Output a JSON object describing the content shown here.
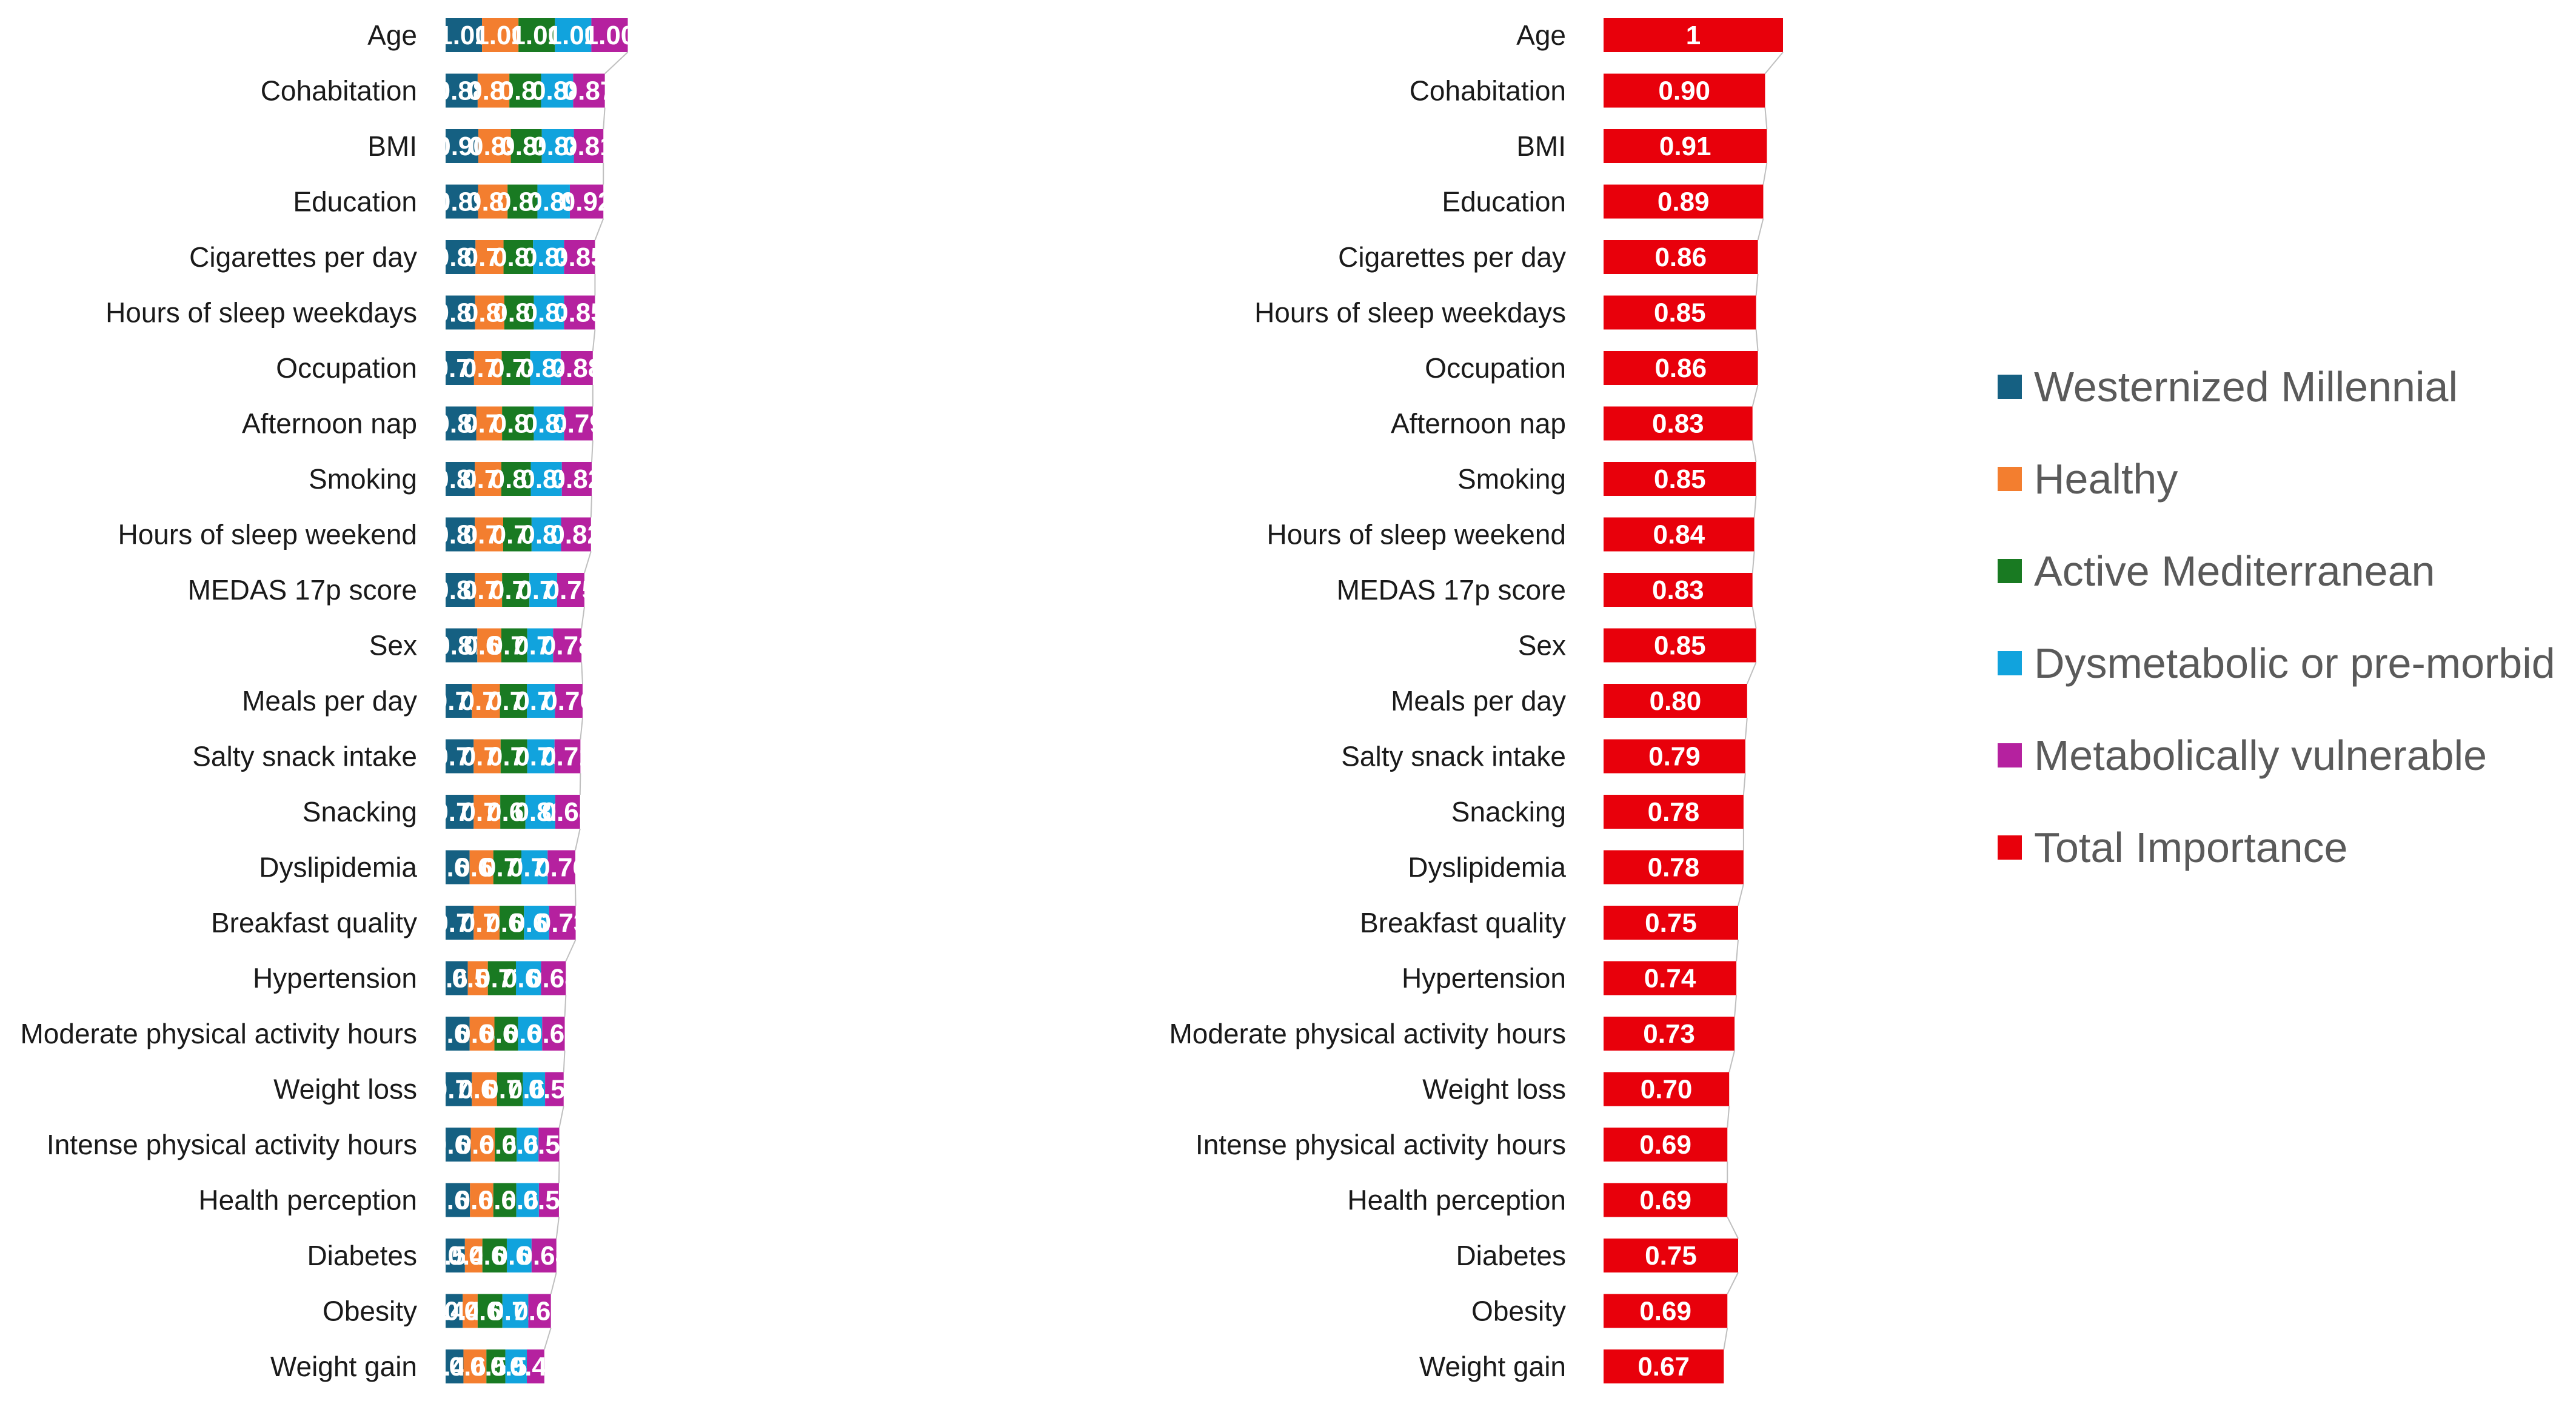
{
  "chart_data": [
    {
      "type": "bar",
      "stacked": true,
      "orientation": "horizontal",
      "categories": [
        "Age",
        "Cohabitation",
        "BMI",
        "Education",
        "Cigarettes per day",
        "Hours of sleep weekdays",
        "Occupation",
        "Afternoon nap",
        "Smoking",
        "Hours of sleep weekend",
        "MEDAS 17p score",
        "Sex",
        "Meals per day",
        "Salty snack intake",
        "Snacking",
        "Dyslipidemia",
        "Breakfast quality",
        "Hypertension",
        "Moderate physical activity hours",
        "Weight loss",
        "Intense physical activity hours",
        "Health perception",
        "Diabetes",
        "Obesity",
        "Weight gain"
      ],
      "series": [
        {
          "name": "Westernized Millennial",
          "color": "#156082",
          "values": [
            1.0,
            0.88,
            0.9,
            0.89,
            0.82,
            0.81,
            0.78,
            0.84,
            0.8,
            0.8,
            0.8,
            0.87,
            0.72,
            0.77,
            0.77,
            0.66,
            0.77,
            0.61,
            0.66,
            0.72,
            0.69,
            0.67,
            0.53,
            0.47,
            0.49
          ],
          "labels": [
            "1.00",
            "0.88",
            "0.90",
            "0.89",
            "0.82",
            "0.81",
            "0.78",
            "0.84",
            "0.80",
            "0.80",
            "0.80",
            "0.87",
            "0.72",
            "0.77",
            "0.77",
            "0.66",
            "0.77",
            "0.61",
            "0.66",
            "0.72",
            "0.69",
            "0.67",
            "0.53",
            "0.47",
            "0.49"
          ]
        },
        {
          "name": "Healthy",
          "color": "#F37E2F",
          "values": [
            1.0,
            0.87,
            0.89,
            0.81,
            0.77,
            0.8,
            0.76,
            0.71,
            0.73,
            0.78,
            0.75,
            0.66,
            0.77,
            0.74,
            0.73,
            0.65,
            0.71,
            0.55,
            0.68,
            0.69,
            0.66,
            0.64,
            0.48,
            0.41,
            0.63
          ],
          "labels": [
            "1.00",
            "0.87",
            "0.89",
            "0.81",
            "0.77",
            "0.80",
            "0.76",
            "0.71",
            "0.73",
            "0.78",
            "0.75",
            "0.66",
            "0.77",
            "0.74",
            "0.73",
            "0.65",
            "0.71",
            "0.55",
            "0.68",
            "0.69",
            "0.66",
            "0.64",
            "0.48",
            "0.41",
            "0.63"
          ]
        },
        {
          "name": "Active Mediterranean",
          "color": "#197A22",
          "values": [
            1.0,
            0.87,
            0.85,
            0.82,
            0.81,
            0.81,
            0.78,
            0.87,
            0.81,
            0.78,
            0.75,
            0.71,
            0.74,
            0.73,
            0.69,
            0.77,
            0.67,
            0.77,
            0.65,
            0.71,
            0.6,
            0.63,
            0.67,
            0.68,
            0.52
          ],
          "labels": [
            "1.00",
            "0.87",
            "0.85",
            "0.82",
            "0.81",
            "0.81",
            "0.78",
            "0.87",
            "0.81",
            "0.78",
            "0.75",
            "0.71",
            "0.74",
            "0.73",
            "0.69",
            "0.77",
            "0.67",
            "0.77",
            "0.65",
            "0.71",
            "0.60",
            "0.63",
            "0.67",
            "0.68",
            "0.52"
          ]
        },
        {
          "name": "Dysmetabolic or pre-morbid",
          "color": "#11A3DD",
          "values": [
            1.0,
            0.88,
            0.88,
            0.89,
            0.85,
            0.83,
            0.84,
            0.83,
            0.85,
            0.81,
            0.76,
            0.71,
            0.77,
            0.75,
            0.82,
            0.72,
            0.69,
            0.69,
            0.66,
            0.61,
            0.6,
            0.62,
            0.68,
            0.71,
            0.59
          ],
          "labels": [
            "1.00",
            "0.88",
            "0.88",
            "0.89",
            "0.85",
            "0.83",
            "0.84",
            "0.83",
            "0.85",
            "0.81",
            "0.76",
            "0.71",
            "0.77",
            "0.75",
            "0.82",
            "0.72",
            "0.69",
            "0.69",
            "0.66",
            "0.61",
            "0.60",
            "0.62",
            "0.68",
            "0.71",
            "0.59"
          ]
        },
        {
          "name": "Metabolically vulnerable",
          "color": "#B5219F",
          "values": [
            1.0,
            0.87,
            0.81,
            0.92,
            0.85,
            0.85,
            0.88,
            0.79,
            0.82,
            0.82,
            0.75,
            0.78,
            0.76,
            0.71,
            0.68,
            0.76,
            0.73,
            0.68,
            0.62,
            0.51,
            0.57,
            0.55,
            0.68,
            0.62,
            0.48
          ],
          "labels": [
            "1.00",
            "0.87",
            "0.81",
            "0.92",
            "0.85",
            "0.85",
            "0.88",
            "0.79",
            "0.82",
            "0.82",
            "0.75",
            "0.78",
            "0.76",
            "0.71",
            "0.68",
            "0.76",
            "0.73",
            "0.68",
            "0.62",
            "0.51",
            "0.57",
            "0.55",
            "0.68",
            "0.62",
            "0.48"
          ]
        }
      ]
    },
    {
      "type": "bar",
      "orientation": "horizontal",
      "categories": [
        "Age",
        "Cohabitation",
        "BMI",
        "Education",
        "Cigarettes per day",
        "Hours of sleep weekdays",
        "Occupation",
        "Afternoon nap",
        "Smoking",
        "Hours of sleep weekend",
        "MEDAS 17p score",
        "Sex",
        "Meals per day",
        "Salty snack intake",
        "Snacking",
        "Dyslipidemia",
        "Breakfast quality",
        "Hypertension",
        "Moderate physical activity hours",
        "Weight loss",
        "Intense physical activity hours",
        "Health perception",
        "Diabetes",
        "Obesity",
        "Weight gain"
      ],
      "series": [
        {
          "name": "Total Importance",
          "color": "#E8000B",
          "values": [
            1,
            0.9,
            0.91,
            0.89,
            0.86,
            0.85,
            0.86,
            0.83,
            0.85,
            0.84,
            0.83,
            0.85,
            0.8,
            0.79,
            0.78,
            0.78,
            0.75,
            0.74,
            0.73,
            0.7,
            0.69,
            0.69,
            0.75,
            0.69,
            0.67
          ],
          "labels": [
            "1",
            "0.90",
            "0.91",
            "0.89",
            "0.86",
            "0.85",
            "0.86",
            "0.83",
            "0.85",
            "0.84",
            "0.83",
            "0.85",
            "0.80",
            "0.79",
            "0.78",
            "0.78",
            "0.75",
            "0.74",
            "0.73",
            "0.70",
            "0.69",
            "0.69",
            "0.75",
            "0.69",
            "0.67"
          ]
        }
      ]
    }
  ],
  "legend": {
    "position": "right",
    "items": [
      {
        "label": "Westernized Millennial",
        "color": "#156082"
      },
      {
        "label": "Healthy",
        "color": "#F37E2F"
      },
      {
        "label": "Active Mediterranean",
        "color": "#197A22"
      },
      {
        "label": "Dysmetabolic or pre-morbid",
        "color": "#11A3DD"
      },
      {
        "label": "Metabolically vulnerable",
        "color": "#B5219F"
      },
      {
        "label": "Total Importance",
        "color": "#E8000B"
      }
    ]
  }
}
